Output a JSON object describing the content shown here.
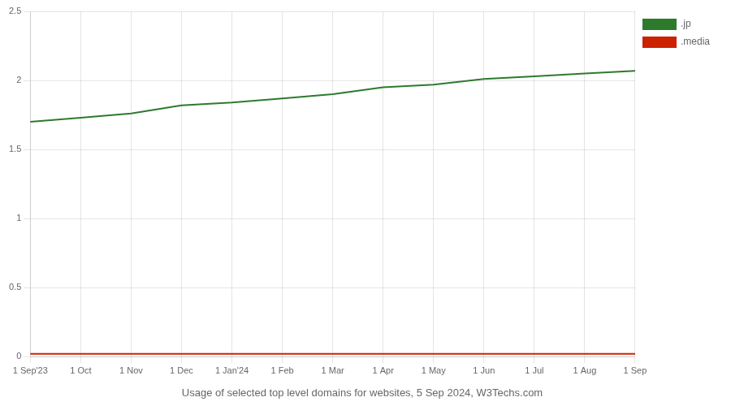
{
  "chart_data": {
    "type": "line",
    "title": "Usage of selected top level domains for websites, 5 Sep 2024, W3Techs.com",
    "categories": [
      "1 Sep'23",
      "1 Oct",
      "1 Nov",
      "1 Dec",
      "1 Jan'24",
      "1 Feb",
      "1 Mar",
      "1 Apr",
      "1 May",
      "1 Jun",
      "1 Jul",
      "1 Aug",
      "1 Sep"
    ],
    "series": [
      {
        "name": ".jp",
        "color": "#2d7a2d",
        "values": [
          1.7,
          1.73,
          1.76,
          1.82,
          1.84,
          1.87,
          1.9,
          1.95,
          1.97,
          2.01,
          2.03,
          2.05,
          2.07
        ]
      },
      {
        "name": ".media",
        "color": "#cc2200",
        "values": [
          0.02,
          0.02,
          0.02,
          0.02,
          0.02,
          0.02,
          0.02,
          0.02,
          0.02,
          0.02,
          0.02,
          0.02,
          0.02
        ]
      }
    ],
    "ylim": [
      0,
      2.5
    ],
    "yticks": [
      0,
      0.5,
      1,
      1.5,
      2,
      2.5
    ],
    "grid": true,
    "legend": "right"
  }
}
